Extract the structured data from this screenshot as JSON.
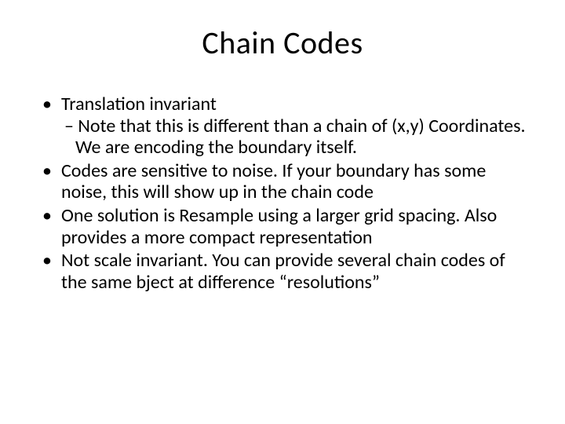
{
  "slide": {
    "title": "Chain Codes",
    "title_fontsize": 40,
    "body_fontsize": 24,
    "background_color": "#ffffff",
    "text_color": "#000000",
    "bullets": [
      {
        "text": "Translation invariant",
        "sub": "Note that this is different than a chain of (x,y) Coordinates.  We are encoding the boundary itself."
      },
      {
        "text": "Codes are sensitive to noise. If your boundary has some noise, this will show up in the chain code"
      },
      {
        "text": "One solution is Resample using a larger grid spacing. Also provides a more compact representation"
      },
      {
        "text": "Not scale invariant.  You can provide several chain codes of the same bject at difference “resolutions”"
      }
    ]
  }
}
